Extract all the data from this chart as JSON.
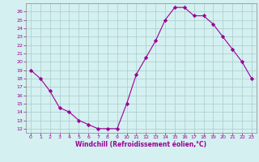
{
  "x": [
    0,
    1,
    2,
    3,
    4,
    5,
    6,
    7,
    8,
    9,
    10,
    11,
    12,
    13,
    14,
    15,
    16,
    17,
    18,
    19,
    20,
    21,
    22,
    23
  ],
  "y": [
    19,
    18,
    16.5,
    14.5,
    14,
    13,
    12.5,
    12,
    12,
    12,
    15,
    18.5,
    20.5,
    22.5,
    25,
    26.5,
    26.5,
    25.5,
    25.5,
    24.5,
    23,
    21.5,
    20,
    18
  ],
  "line_color": "#990099",
  "marker": "D",
  "marker_size": 2.2,
  "bg_color": "#d4f0f0",
  "grid_color": "#aacccc",
  "xlabel": "Windchill (Refroidissement éolien,°C)",
  "xlabel_color": "#990099",
  "tick_color": "#990099",
  "spine_color": "#888888",
  "ylim": [
    11.5,
    27
  ],
  "yticks": [
    12,
    13,
    14,
    15,
    16,
    17,
    18,
    19,
    20,
    21,
    22,
    23,
    24,
    25,
    26
  ],
  "xticks": [
    0,
    1,
    2,
    3,
    4,
    5,
    6,
    7,
    8,
    9,
    10,
    11,
    12,
    13,
    14,
    15,
    16,
    17,
    18,
    19,
    20,
    21,
    22,
    23
  ],
  "xlim": [
    -0.5,
    23.5
  ]
}
